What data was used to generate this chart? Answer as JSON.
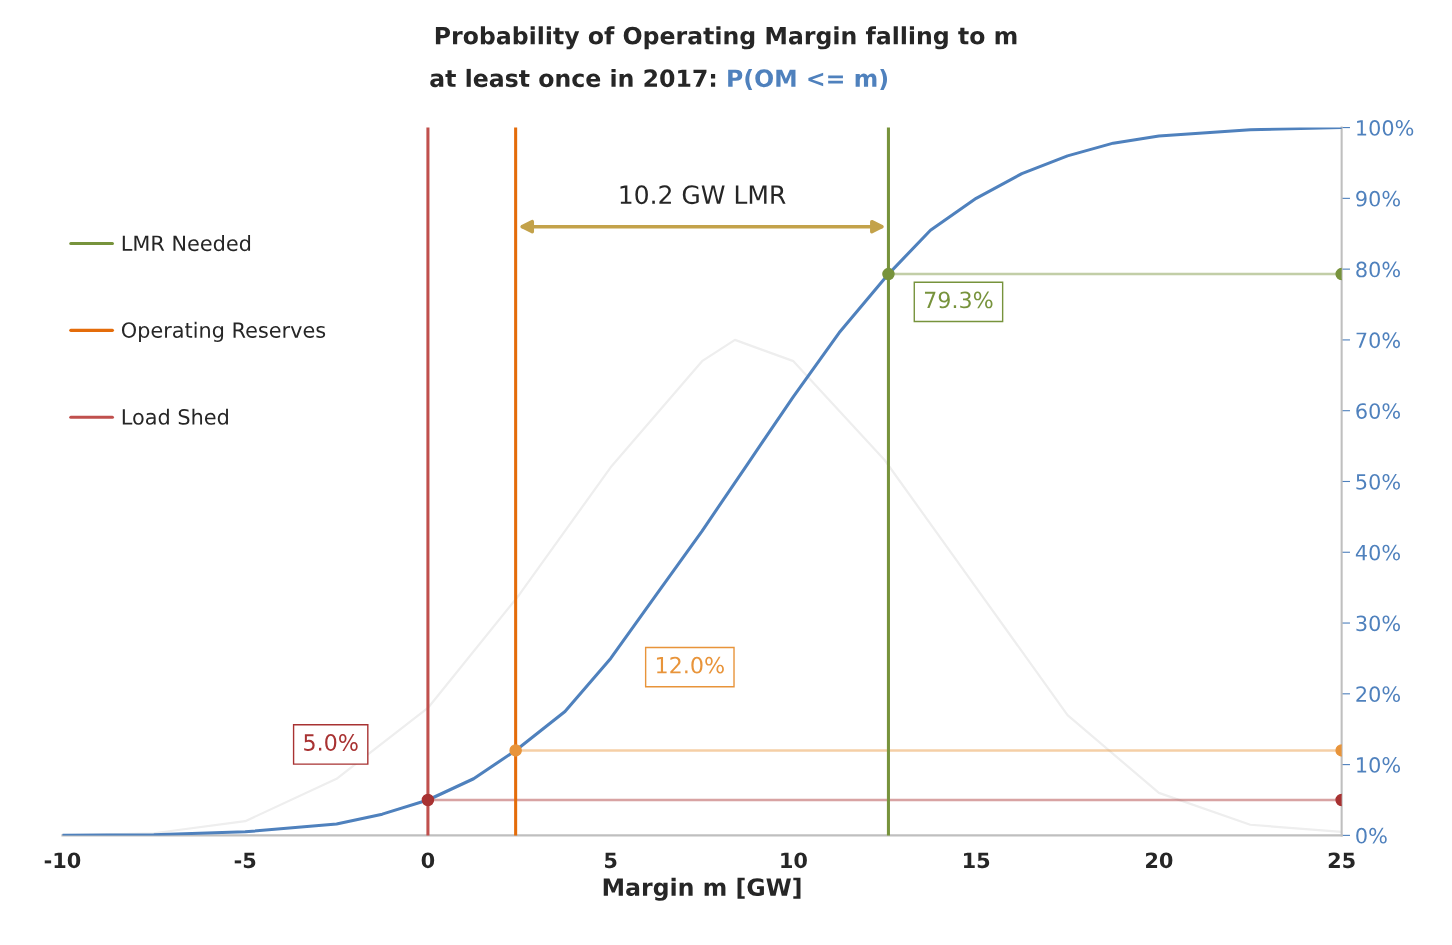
{
  "chart_data": {
    "type": "line",
    "title": "Probability of Operating Margin falling to m",
    "subtitle": "at least once in 2017:",
    "xlabel": "Margin m [GW]",
    "xlim": [
      -10,
      25
    ],
    "xticks": [
      -10,
      -5,
      0,
      5,
      10,
      15,
      20,
      25
    ],
    "ylim": [
      0,
      100
    ],
    "yticks": [
      {
        "value": 0,
        "label": "0%"
      },
      {
        "value": 10,
        "label": "10%"
      },
      {
        "value": 20,
        "label": "20%"
      },
      {
        "value": 30,
        "label": "30%"
      },
      {
        "value": 40,
        "label": "40%"
      },
      {
        "value": 50,
        "label": "50%"
      },
      {
        "value": 60,
        "label": "60%"
      },
      {
        "value": 70,
        "label": "70%"
      },
      {
        "value": 80,
        "label": "80%"
      },
      {
        "value": 90,
        "label": "90%"
      },
      {
        "value": 100,
        "label": "100%"
      }
    ],
    "grid": false,
    "legend": "left",
    "series": [
      {
        "name": "P(OM <= m)",
        "color": "#4f81bd",
        "x": [
          -10,
          -7.5,
          -5,
          -2.5,
          -1.25,
          0,
          1.25,
          2.4,
          3.75,
          5,
          6.25,
          7.5,
          8.75,
          10,
          11.25,
          12.6,
          13.75,
          15,
          16.25,
          17.5,
          18.75,
          20,
          22.5,
          25
        ],
        "values": [
          0.0,
          0.1,
          0.5,
          1.6,
          3,
          5.0,
          8,
          12.0,
          17.5,
          25,
          34,
          43,
          52.5,
          62,
          71,
          79.3,
          85.5,
          90,
          93.5,
          96,
          97.8,
          98.8,
          99.7,
          100
        ]
      },
      {
        "color": "#eeeeee",
        "x": [
          -10,
          -7.5,
          -5,
          -2.5,
          0,
          2.5,
          5,
          7.5,
          8.4,
          10,
          12.5,
          15,
          17.5,
          20,
          22.5,
          25
        ],
        "values": [
          0,
          0.3,
          2,
          8,
          18,
          34,
          52,
          67,
          70,
          67,
          53,
          35,
          17,
          6,
          1.5,
          0.5
        ]
      },
      {
        "color": "#a83232",
        "marker": "circle",
        "x": [
          0,
          25
        ],
        "values": [
          5.0,
          5.0
        ]
      },
      {
        "color": "#e8943a",
        "marker": "circle",
        "x": [
          2.4,
          25
        ],
        "values": [
          12.0,
          12.0
        ]
      },
      {
        "color": "#77933c",
        "marker": "circle",
        "x": [
          12.6,
          25
        ],
        "values": [
          79.3,
          79.3
        ]
      },
      {
        "name": "LMR Needed",
        "color": "#77933c",
        "x": [
          12.6,
          12.6
        ],
        "values": [
          0,
          100
        ]
      },
      {
        "name": "Operating Reserves",
        "color": "#e46c0a",
        "x": [
          2.4,
          2.4
        ],
        "values": [
          0,
          100
        ]
      },
      {
        "name": "Load Shed",
        "color": "#c0504d",
        "x": [
          0,
          0
        ],
        "values": [
          0,
          100
        ]
      }
    ],
    "annotations": [
      "5.0%",
      "12.0%",
      "79.3%",
      "10.2 GW LMR"
    ]
  }
}
